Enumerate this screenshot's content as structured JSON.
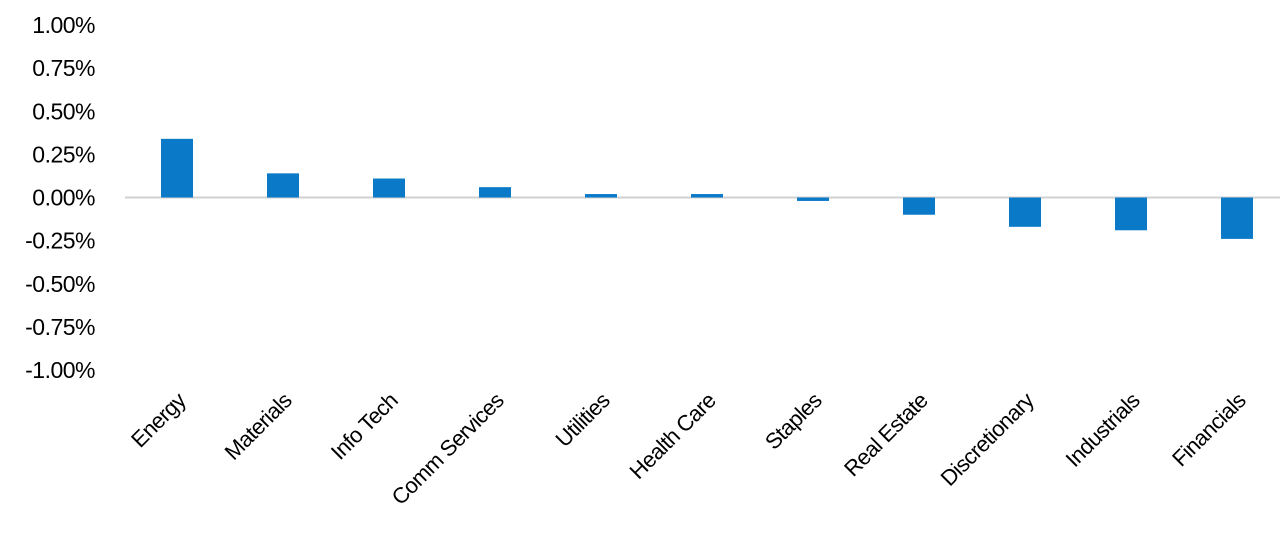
{
  "chart_data": {
    "type": "bar",
    "categories": [
      "Energy",
      "Materials",
      "Info Tech",
      "Comm Services",
      "Utilities",
      "Health Care",
      "Staples",
      "Real Estate",
      "Discretionary",
      "Industrials",
      "Financials"
    ],
    "series": [
      {
        "values": [
          0.34,
          0.14,
          0.11,
          0.06,
          0.02,
          0.02,
          -0.02,
          -0.1,
          -0.17,
          -0.19,
          -0.24
        ]
      }
    ],
    "y_ticks": [
      "1.00%",
      "0.75%",
      "0.50%",
      "0.25%",
      "0.00%",
      "-0.25%",
      "-0.50%",
      "-0.75%",
      "-1.00%"
    ],
    "ylim": [
      -1.0,
      1.0
    ],
    "y_unit": "%",
    "title": "",
    "xlabel": "",
    "ylabel": "",
    "grid": false,
    "legend": "none",
    "bar_color": "#0a7ac8",
    "axis_color": "#d0d0d0"
  }
}
